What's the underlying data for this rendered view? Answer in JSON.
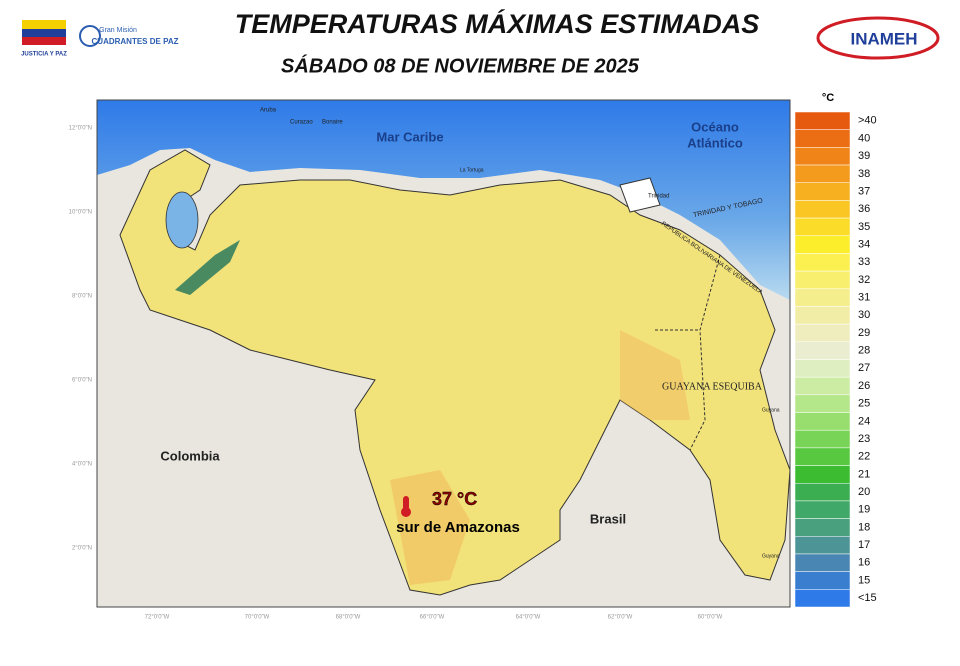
{
  "header": {
    "title": "TEMPERATURAS MÁXIMAS ESTIMADAS",
    "subtitle": "SÁBADO 08 DE NOVIEMBRE DE 2025",
    "logos": {
      "left_caption": "JUSTICIA Y PAZ",
      "mission_small": "Gran Misión",
      "mission_name": "CUADRANTES DE PAZ",
      "right": "INAMEH"
    }
  },
  "map": {
    "labels": {
      "sea": "Mar Caribe",
      "ocean_line1": "Océano",
      "ocean_line2": "Atlántico",
      "colombia": "Colombia",
      "brasil": "Brasil",
      "esequiba": "GUAYANA ESEQUIBA",
      "trinidad_tobago": "TRINIDAD Y TOBAGO",
      "republic": "REPÚBLICA BOLIVARIANA DE VENEZUELA",
      "aruba": "Aruba",
      "curazao": "Curazao",
      "bonaire": "Bonaire",
      "tortuga": "La Tortuga",
      "trinidad": "Trinidad",
      "guyana_top": "Guyana",
      "guyana_bottom": "Guyana"
    },
    "annotation": {
      "value": "37 °C",
      "text": "sur de Amazonas"
    },
    "lat_labels": [
      "12°0'0\"N",
      "10°0'0\"N",
      "8°0'0\"N",
      "6°0'0\"N",
      "4°0'0\"N",
      "2°0'0\"N"
    ],
    "lon_labels": [
      "72°0'0\"W",
      "70°0'0\"W",
      "68°0'0\"W",
      "66°0'0\"W",
      "64°0'0\"W",
      "62°0'0\"W",
      "60°0'0\"W"
    ]
  },
  "legend": {
    "unit": "°C",
    "items": [
      {
        "label": ">40",
        "color": "#e65a10"
      },
      {
        "label": "40",
        "color": "#ec6e14"
      },
      {
        "label": "39",
        "color": "#f08418"
      },
      {
        "label": "38",
        "color": "#f49a1c"
      },
      {
        "label": "37",
        "color": "#f7b020"
      },
      {
        "label": "36",
        "color": "#f9c624"
      },
      {
        "label": "35",
        "color": "#fbdc28"
      },
      {
        "label": "34",
        "color": "#fdee2c"
      },
      {
        "label": "33",
        "color": "#fbf050"
      },
      {
        "label": "32",
        "color": "#f8ef6e"
      },
      {
        "label": "31",
        "color": "#f5ee8c"
      },
      {
        "label": "30",
        "color": "#f2eda6"
      },
      {
        "label": "29",
        "color": "#efedbe"
      },
      {
        "label": "28",
        "color": "#ebedd0"
      },
      {
        "label": "27",
        "color": "#dfeec0"
      },
      {
        "label": "26",
        "color": "#cceca4"
      },
      {
        "label": "25",
        "color": "#b4e68a"
      },
      {
        "label": "24",
        "color": "#98de6e"
      },
      {
        "label": "23",
        "color": "#78d456"
      },
      {
        "label": "22",
        "color": "#58c840"
      },
      {
        "label": "21",
        "color": "#3cbc30"
      },
      {
        "label": "20",
        "color": "#3aae50"
      },
      {
        "label": "19",
        "color": "#40a868"
      },
      {
        "label": "18",
        "color": "#48a07e"
      },
      {
        "label": "17",
        "color": "#4c9496"
      },
      {
        "label": "16",
        "color": "#4a86b4"
      },
      {
        "label": "15",
        "color": "#3a7ed0"
      },
      {
        "label": "<15",
        "color": "#2e7ae8"
      }
    ]
  }
}
